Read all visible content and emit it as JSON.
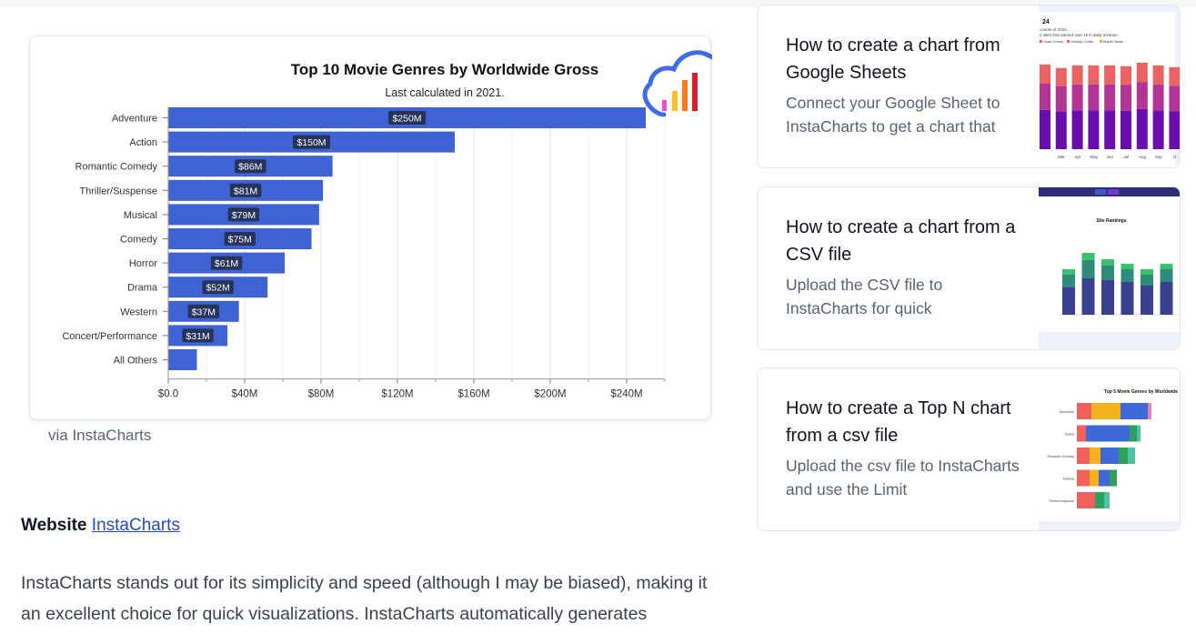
{
  "caption": "via InstaCharts",
  "website": {
    "label": "Website",
    "link_text": "InstaCharts"
  },
  "paragraph": "InstaCharts stands out for its simplicity and speed (although I may be biased), making it an excellent choice for quick visualizations. InstaCharts automatically generates",
  "colors": {
    "bar": "#3f63d2",
    "link": "#2a4bb8",
    "label_bg": "#26335a"
  },
  "logo": {
    "icon": "instacharts-cloud-logo"
  },
  "chart_data": {
    "type": "bar",
    "orientation": "horizontal",
    "title": "Top 10 Movie Genres by Worldwide Gross",
    "subtitle": "Last calculated in 2021.",
    "categories": [
      "Adventure",
      "Action",
      "Romantic Comedy",
      "Thriller/Suspense",
      "Musical",
      "Comedy",
      "Horror",
      "Drama",
      "Western",
      "Concert/Performance",
      "All Others"
    ],
    "values": [
      250,
      150,
      86,
      81,
      79,
      75,
      61,
      52,
      37,
      31,
      15
    ],
    "data_labels": [
      "$250M",
      "$150M",
      "$86M",
      "$81M",
      "$79M",
      "$75M",
      "$61M",
      "$52M",
      "$37M",
      "$31M",
      ""
    ],
    "x_ticks": [
      "$0.0",
      "$40M",
      "$80M",
      "$120M",
      "$160M",
      "$200M",
      "$240M"
    ],
    "xlim": [
      0,
      260
    ],
    "grid": true,
    "legend": false
  },
  "related": [
    {
      "title": "How to create a chart from Google Sheets",
      "desc": "Connect your Google Sheet to InstaCharts to get a chart that",
      "thumb": {
        "kind": "stacked-bar",
        "title_fragment": "24",
        "subtitle_fragments": [
          "course of 2024.",
          "e sites that earned over 1k in daily revenue."
        ],
        "legend": [
          "Soda Tomes",
          "Holiday Crafts",
          "Maple News"
        ],
        "x_labels": [
          "Mar",
          "Apr",
          "May",
          "Jun",
          "Jul",
          "Aug",
          "Sep",
          "O"
        ],
        "colors": [
          "#6a0dad",
          "#b03595",
          "#e96363"
        ]
      }
    },
    {
      "title": "How to create a chart from a CSV file",
      "desc": "Upload the CSV file to InstaCharts for quick",
      "thumb": {
        "kind": "stacked-bar",
        "title_fragment": "Site Rankings",
        "colors": [
          "#37418f",
          "#2f8c7a",
          "#39c16c"
        ]
      }
    },
    {
      "title": "How to create a Top N chart from a csv file",
      "desc": "Upload the csv file to InstaCharts and use the Limit",
      "thumb": {
        "kind": "stacked-hbar",
        "title_fragment": "Top 5 Movie Genres by Worldwide",
        "categories": [
          "Adventure",
          "Action",
          "Romantic Comedy",
          "Musical",
          "Thriller/Suspense"
        ],
        "colors": [
          "#f0625b",
          "#f2b21f",
          "#3d6ad6",
          "#2fa05c",
          "#4fc3a1",
          "#f07cb6"
        ]
      }
    }
  ]
}
